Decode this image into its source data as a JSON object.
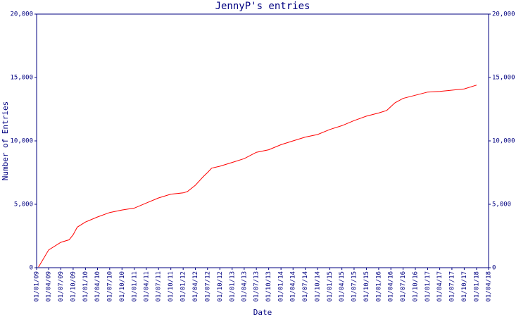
{
  "chart_data": {
    "type": "line",
    "title": "JennyP's entries",
    "x_label": "Date",
    "y_label": "Number of Entries",
    "x": [
      "2009-01-15",
      "2009-02-15",
      "2009-04-01",
      "2009-07-01",
      "2009-09-01",
      "2009-10-01",
      "2009-11-01",
      "2010-01-01",
      "2010-04-01",
      "2010-07-01",
      "2010-10-01",
      "2011-01-01",
      "2011-04-01",
      "2011-07-01",
      "2011-10-01",
      "2012-01-01",
      "2012-02-01",
      "2012-04-01",
      "2012-06-01",
      "2012-07-01",
      "2012-08-01",
      "2012-10-01",
      "2013-01-01",
      "2013-04-01",
      "2013-07-01",
      "2013-10-01",
      "2014-01-01",
      "2014-04-01",
      "2014-07-01",
      "2014-10-01",
      "2015-01-01",
      "2015-04-01",
      "2015-07-01",
      "2015-10-01",
      "2016-01-01",
      "2016-03-01",
      "2016-05-01",
      "2016-07-01",
      "2016-10-01",
      "2017-01-01",
      "2017-04-01",
      "2017-07-01",
      "2017-10-01",
      "2018-01-01"
    ],
    "series": [
      {
        "color": "#ff0000",
        "values": [
          50,
          600,
          1400,
          2000,
          2200,
          2600,
          3200,
          3600,
          4000,
          4350,
          4550,
          4700,
          5100,
          5500,
          5800,
          5900,
          6000,
          6500,
          7200,
          7500,
          7850,
          8000,
          8300,
          8600,
          9100,
          9300,
          9700,
          10000,
          10300,
          10500,
          10900,
          11200,
          11600,
          11950,
          12200,
          12400,
          13000,
          13350,
          13600,
          13850,
          13900,
          14000,
          14100,
          14400
        ]
      }
    ],
    "xlim": [
      "2009-01-01",
      "2018-04-01"
    ],
    "xticks": [
      {
        "value": "2009-01-01",
        "label": "01/01/09"
      },
      {
        "value": "2009-04-01",
        "label": "01/04/09"
      },
      {
        "value": "2009-07-01",
        "label": "01/07/09"
      },
      {
        "value": "2009-10-01",
        "label": "01/10/09"
      },
      {
        "value": "2010-01-01",
        "label": "01/01/10"
      },
      {
        "value": "2010-04-01",
        "label": "01/04/10"
      },
      {
        "value": "2010-07-01",
        "label": "01/07/10"
      },
      {
        "value": "2010-10-01",
        "label": "01/10/10"
      },
      {
        "value": "2011-01-01",
        "label": "01/01/11"
      },
      {
        "value": "2011-04-01",
        "label": "01/04/11"
      },
      {
        "value": "2011-07-01",
        "label": "01/07/11"
      },
      {
        "value": "2011-10-01",
        "label": "01/10/11"
      },
      {
        "value": "2012-01-01",
        "label": "01/01/12"
      },
      {
        "value": "2012-04-01",
        "label": "01/04/12"
      },
      {
        "value": "2012-07-01",
        "label": "01/07/12"
      },
      {
        "value": "2012-10-01",
        "label": "01/10/12"
      },
      {
        "value": "2013-01-01",
        "label": "01/01/13"
      },
      {
        "value": "2013-04-01",
        "label": "01/04/13"
      },
      {
        "value": "2013-07-01",
        "label": "01/07/13"
      },
      {
        "value": "2013-10-01",
        "label": "01/10/13"
      },
      {
        "value": "2014-01-01",
        "label": "01/01/14"
      },
      {
        "value": "2014-04-01",
        "label": "01/04/14"
      },
      {
        "value": "2014-07-01",
        "label": "01/07/14"
      },
      {
        "value": "2014-10-01",
        "label": "01/10/14"
      },
      {
        "value": "2015-01-01",
        "label": "01/01/15"
      },
      {
        "value": "2015-04-01",
        "label": "01/04/15"
      },
      {
        "value": "2015-07-01",
        "label": "01/07/15"
      },
      {
        "value": "2015-10-01",
        "label": "01/10/15"
      },
      {
        "value": "2016-01-01",
        "label": "01/01/16"
      },
      {
        "value": "2016-04-01",
        "label": "01/04/16"
      },
      {
        "value": "2016-07-01",
        "label": "01/07/16"
      },
      {
        "value": "2016-10-01",
        "label": "01/10/16"
      },
      {
        "value": "2017-01-01",
        "label": "01/01/17"
      },
      {
        "value": "2017-04-01",
        "label": "01/04/17"
      },
      {
        "value": "2017-07-01",
        "label": "01/07/17"
      },
      {
        "value": "2017-10-01",
        "label": "01/10/17"
      },
      {
        "value": "2018-01-01",
        "label": "01/01/18"
      },
      {
        "value": "2018-04-01",
        "label": "01/04/18"
      }
    ],
    "ylim": [
      0,
      20000
    ],
    "yticks": [
      0,
      {
        "value": 5000,
        "label": "5,000"
      },
      {
        "value": 10000,
        "label": "10,000"
      },
      {
        "value": 15000,
        "label": "15,000"
      },
      {
        "value": 20000,
        "label": "20,000"
      }
    ],
    "y2lim": [
      0,
      20000
    ],
    "y2ticks": [
      0,
      {
        "value": 5000,
        "label": "5,000"
      },
      {
        "value": 10000,
        "label": "10,000"
      },
      {
        "value": 15000,
        "label": "15,000"
      },
      {
        "value": 20000,
        "label": "20,000"
      }
    ],
    "grid": false
  }
}
